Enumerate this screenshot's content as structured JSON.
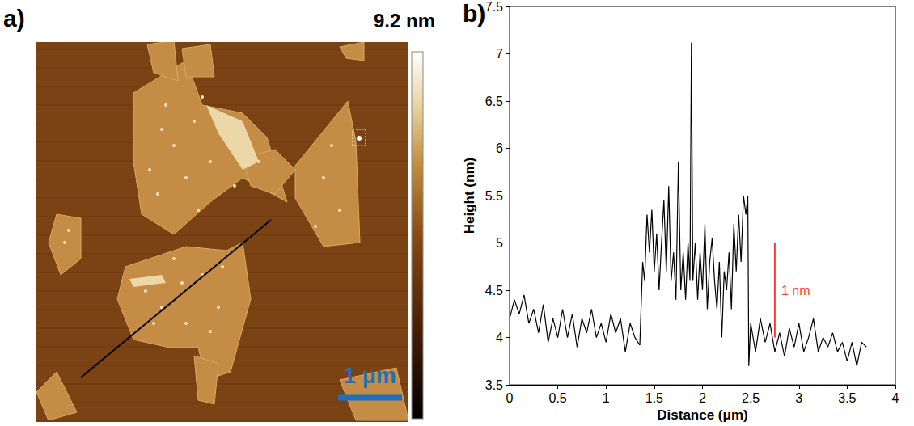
{
  "afm_image": {
    "panel_label": "a)",
    "colorbar_label": "9.2 nm",
    "scale_bar_label": "1 μm"
  },
  "chart_data": {
    "type": "line",
    "panel_label": "b)",
    "xlabel": "Distance (μm)",
    "ylabel": "Height (nm)",
    "color": "#000000",
    "grid": false,
    "x": [
      0,
      0.05,
      0.1,
      0.15,
      0.2,
      0.25,
      0.3,
      0.35,
      0.4,
      0.45,
      0.5,
      0.55,
      0.6,
      0.65,
      0.7,
      0.75,
      0.8,
      0.85,
      0.9,
      0.95,
      1.0,
      1.05,
      1.1,
      1.15,
      1.2,
      1.25,
      1.3,
      1.35,
      1.38,
      1.4,
      1.425,
      1.45,
      1.475,
      1.5,
      1.525,
      1.55,
      1.575,
      1.6,
      1.625,
      1.65,
      1.675,
      1.7,
      1.725,
      1.75,
      1.775,
      1.8,
      1.825,
      1.85,
      1.87,
      1.885,
      1.9,
      1.925,
      1.95,
      1.975,
      2.0,
      2.025,
      2.05,
      2.075,
      2.1,
      2.125,
      2.15,
      2.175,
      2.2,
      2.225,
      2.25,
      2.275,
      2.3,
      2.325,
      2.35,
      2.375,
      2.4,
      2.425,
      2.45,
      2.47,
      2.48,
      2.5,
      2.55,
      2.6,
      2.65,
      2.7,
      2.75,
      2.8,
      2.85,
      2.9,
      2.95,
      3.0,
      3.05,
      3.1,
      3.15,
      3.2,
      3.25,
      3.3,
      3.35,
      3.4,
      3.45,
      3.5,
      3.55,
      3.6,
      3.65,
      3.7
    ],
    "values": [
      4.2,
      4.4,
      4.25,
      4.45,
      4.15,
      4.3,
      4.05,
      4.35,
      3.95,
      4.2,
      4.0,
      4.3,
      4.0,
      4.25,
      3.9,
      4.2,
      4.05,
      4.3,
      4.0,
      4.15,
      3.95,
      4.25,
      4.05,
      4.2,
      3.85,
      4.15,
      4.0,
      3.92,
      4.8,
      4.6,
      5.3,
      4.9,
      5.35,
      4.7,
      5.1,
      4.5,
      5.0,
      5.45,
      4.7,
      5.6,
      4.6,
      4.9,
      4.4,
      5.85,
      4.5,
      4.9,
      4.4,
      5.0,
      4.6,
      7.12,
      4.6,
      5.0,
      4.4,
      4.9,
      4.5,
      5.2,
      4.3,
      4.8,
      5.05,
      4.6,
      4.3,
      4.8,
      4.0,
      4.7,
      4.5,
      4.9,
      4.3,
      5.2,
      4.7,
      5.3,
      4.8,
      5.5,
      5.3,
      5.5,
      3.7,
      4.15,
      3.85,
      4.2,
      3.95,
      4.15,
      3.85,
      4.05,
      3.8,
      4.1,
      3.9,
      4.15,
      3.85,
      4.0,
      4.2,
      3.85,
      4.0,
      3.9,
      4.05,
      3.85,
      3.95,
      3.75,
      3.95,
      3.7,
      3.95,
      3.9
    ],
    "xlim": [
      0,
      4
    ],
    "xticks": [
      0,
      0.5,
      1,
      1.5,
      2,
      2.5,
      3,
      3.5,
      4
    ],
    "ylim": [
      3.5,
      7.5
    ],
    "yticks": [
      3.5,
      4,
      4.5,
      5,
      5.5,
      6,
      6.5,
      7,
      7.5
    ],
    "annotations": [
      {
        "text": "1 nm",
        "x": 2.75,
        "y_from": 4.0,
        "y_to": 5.0,
        "color": "#ff0000"
      }
    ]
  }
}
